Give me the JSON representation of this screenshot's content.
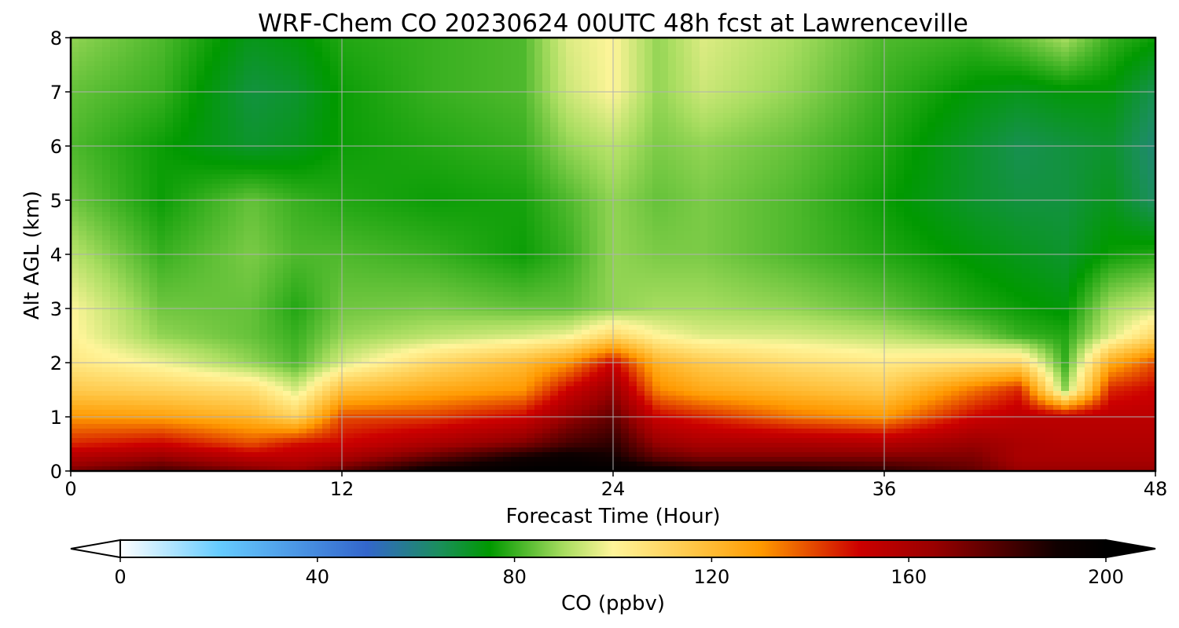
{
  "chart_data": {
    "type": "heatmap",
    "title": "WRF-Chem CO  20230624 00UTC 48h fcst at Lawrenceville",
    "xlabel": "Forecast Time (Hour)",
    "ylabel": "Alt AGL (km)",
    "xlim": [
      0,
      48
    ],
    "ylim": [
      0,
      8
    ],
    "xticks": [
      0,
      12,
      24,
      36,
      48
    ],
    "yticks": [
      0,
      1,
      2,
      3,
      4,
      5,
      6,
      7,
      8
    ],
    "grid": true,
    "colorbar": {
      "label": "CO  (ppbv)",
      "range": [
        0,
        200
      ],
      "ticks": [
        0,
        40,
        80,
        120,
        160,
        200
      ],
      "extend": "both",
      "placement": "bottom",
      "colors": [
        {
          "v": 0,
          "c": "#ffffff"
        },
        {
          "v": 20,
          "c": "#66ccff"
        },
        {
          "v": 50,
          "c": "#3366cc"
        },
        {
          "v": 65,
          "c": "#1a8f5a"
        },
        {
          "v": 75,
          "c": "#009900"
        },
        {
          "v": 90,
          "c": "#a8dd60"
        },
        {
          "v": 100,
          "c": "#fff59a"
        },
        {
          "v": 120,
          "c": "#ffbb33"
        },
        {
          "v": 130,
          "c": "#ff9900"
        },
        {
          "v": 150,
          "c": "#cc0000"
        },
        {
          "v": 165,
          "c": "#990000"
        },
        {
          "v": 190,
          "c": "#110000"
        },
        {
          "v": 200,
          "c": "#000000"
        }
      ]
    },
    "x": [
      0,
      4,
      8,
      10,
      12,
      16,
      20,
      22,
      24,
      26,
      28,
      32,
      36,
      40,
      42,
      44,
      46,
      48
    ],
    "y": [
      0,
      0.25,
      0.5,
      1,
      1.5,
      2,
      2.5,
      3,
      4,
      5,
      6,
      7,
      8
    ],
    "z": [
      [
        170,
        180,
        170,
        165,
        175,
        195,
        200,
        200,
        200,
        195,
        190,
        190,
        185,
        175,
        165,
        165,
        165,
        165
      ],
      [
        158,
        165,
        155,
        155,
        160,
        175,
        190,
        195,
        190,
        175,
        170,
        170,
        170,
        170,
        160,
        160,
        160,
        160
      ],
      [
        145,
        150,
        140,
        148,
        150,
        160,
        170,
        180,
        185,
        165,
        160,
        160,
        158,
        165,
        160,
        158,
        158,
        158
      ],
      [
        130,
        128,
        122,
        112,
        140,
        142,
        150,
        165,
        175,
        150,
        145,
        135,
        130,
        150,
        155,
        155,
        155,
        155
      ],
      [
        115,
        112,
        108,
        95,
        118,
        125,
        130,
        150,
        165,
        132,
        125,
        120,
        115,
        135,
        145,
        88,
        145,
        150
      ],
      [
        105,
        98,
        88,
        82,
        95,
        110,
        120,
        130,
        150,
        122,
        115,
        108,
        104,
        108,
        110,
        80,
        125,
        140
      ],
      [
        101,
        88,
        84,
        80,
        88,
        92,
        95,
        98,
        110,
        100,
        96,
        95,
        92,
        86,
        80,
        78,
        95,
        110
      ],
      [
        100,
        85,
        84,
        78,
        85,
        86,
        84,
        84,
        88,
        90,
        90,
        88,
        84,
        78,
        76,
        74,
        90,
        95
      ],
      [
        92,
        80,
        86,
        82,
        82,
        80,
        76,
        80,
        88,
        86,
        86,
        82,
        78,
        74,
        72,
        70,
        76,
        78
      ],
      [
        85,
        76,
        84,
        80,
        78,
        76,
        77,
        82,
        88,
        84,
        86,
        82,
        76,
        70,
        68,
        68,
        72,
        64
      ],
      [
        82,
        76,
        70,
        72,
        76,
        78,
        80,
        88,
        92,
        86,
        88,
        84,
        78,
        70,
        66,
        68,
        70,
        62
      ],
      [
        84,
        80,
        68,
        70,
        76,
        80,
        82,
        94,
        100,
        88,
        94,
        88,
        80,
        74,
        72,
        74,
        74,
        66
      ],
      [
        88,
        82,
        72,
        74,
        78,
        80,
        82,
        96,
        100,
        88,
        96,
        90,
        82,
        80,
        84,
        90,
        80,
        76
      ]
    ]
  }
}
